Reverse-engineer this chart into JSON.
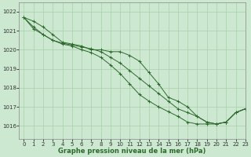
{
  "background_color": "#cde8d0",
  "grid_color": "#a8cfa8",
  "line_color": "#2d6a2d",
  "xlabel": "Graphe pression niveau de la mer (hPa)",
  "xlabel_color": "#2d6a2d",
  "ylim": [
    1015.3,
    1022.5
  ],
  "xlim": [
    -0.5,
    23
  ],
  "yticks": [
    1016,
    1017,
    1018,
    1019,
    1020,
    1021,
    1022
  ],
  "xticks": [
    0,
    1,
    2,
    3,
    4,
    5,
    6,
    7,
    8,
    9,
    10,
    11,
    12,
    13,
    14,
    15,
    16,
    17,
    18,
    19,
    20,
    21,
    22,
    23
  ],
  "series1": [
    1021.7,
    1021.5,
    1021.2,
    1020.8,
    1020.4,
    1020.3,
    1020.2,
    1020.0,
    1020.0,
    1019.9,
    1019.9,
    1019.7,
    1019.4,
    1018.8,
    1018.2,
    1017.5,
    1017.3,
    1017.0,
    1016.5,
    1016.2,
    1016.1,
    1016.2,
    1016.7,
    1016.9
  ],
  "series2": [
    1021.7,
    1021.2,
    1020.8,
    1020.5,
    1020.35,
    1020.25,
    1020.15,
    1020.05,
    1019.9,
    1019.6,
    1019.3,
    1018.9,
    1018.5,
    1018.1,
    1017.7,
    1017.3,
    1016.9,
    1016.7,
    1016.5,
    1016.2,
    1016.1,
    1016.2,
    1016.7,
    1016.9
  ],
  "series3": [
    1021.7,
    1021.1,
    1020.8,
    1020.5,
    1020.3,
    1020.2,
    1020.0,
    1019.85,
    1019.6,
    1019.2,
    1018.75,
    1018.2,
    1017.65,
    1017.3,
    1017.0,
    1016.75,
    1016.5,
    1016.2,
    1016.1,
    1016.1,
    1016.1,
    1016.2,
    1016.7,
    1016.9
  ],
  "tick_color": "#333333",
  "spine_color": "#888888",
  "tick_fontsize": 5.0,
  "xlabel_fontsize": 6.0,
  "linewidth": 0.7,
  "markersize": 2.5,
  "markeredgewidth": 0.7
}
